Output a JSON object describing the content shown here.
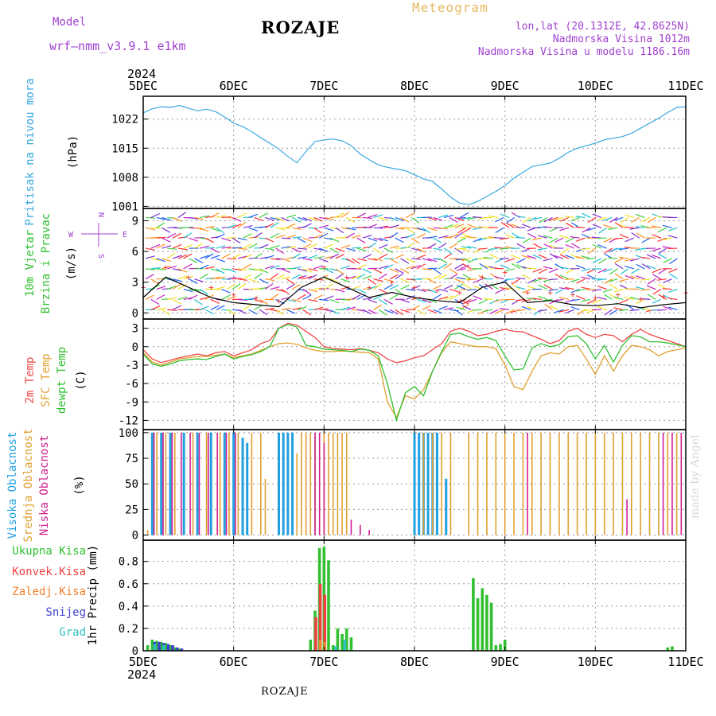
{
  "header": {
    "title": "ROZAJE",
    "model_label": "Model",
    "model_value": "wrf—nmm_v3.9.1  e1km",
    "meteogram_label": "Meteogram",
    "location_line1": "lon,lat (20.1312E, 42.8625N)",
    "location_line2": "Nadmorska Visina 1012m",
    "location_line3": "Nadmorska Visina u modelu 1186.16m"
  },
  "footer": {
    "station": "ROZAJE",
    "watermark": "made by Angel"
  },
  "colors": {
    "pressure": "#3aa8e0",
    "temp2m": "#f04848",
    "sfc_temp": "#e0a030",
    "dewpoint": "#30c030",
    "high_cloud": "#20a0e0",
    "mid_cloud": "#e0a030",
    "low_cloud": "#d02090",
    "total_precip": "#30c030",
    "conv_precip": "#f04040",
    "freezing_rain": "#f08030",
    "snow": "#4040d0",
    "graupel": "#30c0c0"
  },
  "chart_data": [
    {
      "type": "line",
      "panel": "pressure",
      "ylabel": [
        "Pritisak na nivou mora",
        "(hPa)"
      ],
      "ylim": [
        1000.5,
        1027.5
      ],
      "yticks": [
        "1001",
        "1008",
        "1015",
        "1022"
      ],
      "x_year_top": "2024",
      "x_year_bottom": "2024",
      "x_ticks": [
        "5DEC",
        "6DEC",
        "7DEC",
        "8DEC",
        "9DEC",
        "10DEC",
        "11DEC"
      ],
      "grid": true,
      "x": [
        0,
        0.1,
        0.2,
        0.3,
        0.4,
        0.5,
        0.6,
        0.7,
        0.8,
        0.85,
        0.9,
        0.95,
        1.0,
        1.1,
        1.2,
        1.3,
        1.4,
        1.5,
        1.6,
        1.7,
        1.8,
        1.9,
        2.0,
        2.1,
        2.2,
        2.3,
        2.4,
        2.5,
        2.6,
        2.7,
        2.8,
        2.9,
        3.0,
        3.1,
        3.2,
        3.3,
        3.4,
        3.5,
        3.6,
        3.7,
        3.8,
        3.9,
        4.0,
        4.1,
        4.2,
        4.3,
        4.4,
        4.5,
        4.6,
        4.7,
        4.8,
        4.9,
        5.0,
        5.1,
        5.2,
        5.3,
        5.4,
        5.5,
        5.6,
        5.7,
        5.8,
        5.9,
        6.0
      ],
      "series": [
        {
          "values": [
            1023.5,
            1024.5,
            1025.0,
            1024.8,
            1025.3,
            1024.6,
            1024.0,
            1024.4,
            1023.8,
            1023.2,
            1022.5,
            1021.8,
            1021.0,
            1020.2,
            1019.0,
            1017.5,
            1016.2,
            1014.8,
            1013.0,
            1011.5,
            1014.2,
            1016.6,
            1017.0,
            1017.2,
            1016.8,
            1015.6,
            1013.6,
            1012.2,
            1011.0,
            1010.4,
            1010.0,
            1009.6,
            1008.6,
            1007.6,
            1007.0,
            1005.2,
            1003.2,
            1001.8,
            1001.4,
            1002.2,
            1003.4,
            1004.6,
            1006.0,
            1007.8,
            1009.2,
            1010.6,
            1011.0,
            1011.4,
            1012.6,
            1014.0,
            1015.0,
            1015.6,
            1016.2,
            1017.0,
            1017.4,
            1017.8,
            1018.6,
            1019.8,
            1021.0,
            1022.2,
            1023.6,
            1024.8,
            1025.0
          ]
        }
      ]
    },
    {
      "type": "barb",
      "panel": "wind",
      "ylabel": [
        "10m Vjetar",
        "Brzina i Pravac",
        "(m/s)"
      ],
      "compass": [
        "N",
        "E",
        "S",
        "W"
      ],
      "ylim": [
        -0.6,
        10.2
      ],
      "yticks": [
        "0",
        "3",
        "6",
        "9"
      ],
      "grid": true,
      "x": [
        0,
        0.25,
        0.5,
        0.75,
        1.0,
        1.25,
        1.5,
        1.75,
        2.0,
        2.25,
        2.5,
        2.75,
        3.0,
        3.25,
        3.5,
        3.75,
        4.0,
        4.25,
        4.5,
        4.75,
        5.0,
        5.25,
        5.5,
        5.75,
        6.0
      ],
      "series": [
        {
          "values": [
            1.5,
            3.5,
            2.5,
            1.5,
            1.0,
            0.8,
            0.6,
            2.5,
            3.5,
            2.5,
            1.5,
            2.0,
            1.5,
            1.2,
            1.0,
            2.5,
            3.0,
            1.0,
            1.2,
            0.8,
            0.7,
            0.9,
            0.5,
            0.8,
            1.0
          ]
        },
        {
          "values": [
            2.5,
            4.5,
            3.5,
            2.5,
            1.8,
            1.5,
            1.2,
            3.5,
            4.5,
            3.5,
            2.5,
            3.0,
            2.5,
            2.2,
            2.0,
            3.5,
            4.0,
            2.0,
            2.0,
            1.8,
            1.5,
            1.8,
            1.4,
            1.6,
            2.0
          ]
        }
      ]
    },
    {
      "type": "line",
      "panel": "temperature",
      "ylabel": [
        "2m Temp",
        "SFC Temp",
        "dewpt Temp",
        "(C)"
      ],
      "ylim": [
        -13.5,
        4.5
      ],
      "yticks": [
        "3",
        "0",
        "-3",
        "-6",
        "-9",
        "-12"
      ],
      "grid": true,
      "x": [
        0,
        0.1,
        0.2,
        0.3,
        0.4,
        0.5,
        0.6,
        0.7,
        0.8,
        0.9,
        1.0,
        1.1,
        1.2,
        1.3,
        1.4,
        1.5,
        1.6,
        1.7,
        1.8,
        1.9,
        2.0,
        2.1,
        2.2,
        2.3,
        2.4,
        2.5,
        2.6,
        2.7,
        2.8,
        2.9,
        3.0,
        3.1,
        3.2,
        3.3,
        3.4,
        3.5,
        3.6,
        3.7,
        3.8,
        3.9,
        4.0,
        4.1,
        4.2,
        4.3,
        4.4,
        4.5,
        4.6,
        4.7,
        4.8,
        4.9,
        5.0,
        5.1,
        5.2,
        5.3,
        5.4,
        5.5,
        5.6,
        5.7,
        5.8,
        5.9,
        6.0
      ],
      "series": [
        {
          "name": "2m Temp",
          "values": [
            -0.5,
            -2.0,
            -2.6,
            -2.2,
            -1.8,
            -1.5,
            -1.2,
            -1.5,
            -1.0,
            -0.8,
            -1.5,
            -1.0,
            -0.5,
            0.5,
            1.0,
            3.0,
            3.8,
            3.5,
            2.5,
            1.5,
            0.0,
            -0.3,
            -0.4,
            -0.5,
            -0.3,
            -0.6,
            -1.0,
            -2.0,
            -2.6,
            -2.3,
            -1.8,
            -1.5,
            -0.5,
            0.5,
            2.5,
            3.0,
            2.5,
            1.8,
            2.0,
            2.5,
            2.8,
            2.5,
            2.4,
            1.8,
            1.2,
            0.5,
            1.0,
            2.5,
            3.0,
            2.0,
            1.5,
            2.0,
            1.8,
            0.8,
            2.0,
            2.8,
            2.0,
            1.5,
            1.0,
            0.5,
            0.0
          ]
        },
        {
          "name": "SFC Temp",
          "values": [
            -1.0,
            -2.5,
            -3.0,
            -2.5,
            -2.0,
            -1.8,
            -1.6,
            -1.6,
            -1.4,
            -1.2,
            -1.8,
            -1.5,
            -1.2,
            -0.6,
            0.0,
            0.5,
            0.6,
            0.4,
            -0.2,
            -0.6,
            -0.8,
            -0.8,
            -0.7,
            -0.8,
            -0.9,
            -1.0,
            -2.0,
            -9.0,
            -11.5,
            -8.0,
            -8.5,
            -7.0,
            -4.0,
            -1.0,
            0.8,
            0.5,
            0.2,
            0.0,
            0.0,
            -0.3,
            -3.0,
            -6.5,
            -7.0,
            -4.0,
            -1.5,
            -1.0,
            -1.2,
            0.0,
            0.2,
            -2.0,
            -4.5,
            -1.5,
            -4.0,
            -1.5,
            0.2,
            0.0,
            -0.5,
            -1.5,
            -0.8,
            -0.5,
            -0.2
          ]
        },
        {
          "name": "dewpt Temp",
          "values": [
            -1.2,
            -2.8,
            -3.2,
            -2.8,
            -2.3,
            -2.1,
            -2.0,
            -2.1,
            -1.6,
            -1.2,
            -2.0,
            -1.6,
            -1.3,
            -0.8,
            0.0,
            3.0,
            3.6,
            3.2,
            0.2,
            0.0,
            -0.4,
            -0.5,
            -0.6,
            -0.8,
            -0.4,
            -0.6,
            -1.5,
            -6.0,
            -12.0,
            -7.5,
            -6.5,
            -8.0,
            -4.0,
            -0.8,
            2.0,
            2.2,
            1.6,
            1.2,
            1.5,
            1.0,
            -1.5,
            -3.8,
            -3.6,
            -0.2,
            0.5,
            0.0,
            0.3,
            1.6,
            1.8,
            0.5,
            -2.0,
            0.2,
            -2.5,
            0.2,
            1.8,
            1.6,
            0.8,
            0.8,
            0.6,
            0.3,
            0.0
          ]
        }
      ]
    },
    {
      "type": "bar",
      "panel": "clouds",
      "ylabel": [
        "Visoka Oblacnost",
        "Srednja Oblacnost",
        "Niska Oblacnost",
        "(%)"
      ],
      "ylim": [
        -5,
        103
      ],
      "yticks": [
        "0",
        "25",
        "50",
        "75",
        "100"
      ],
      "grid": true,
      "series": [
        {
          "name": "Visoka Oblacnost",
          "x": [
            0.1,
            0.2,
            0.3,
            0.45,
            0.6,
            0.75,
            0.9,
            1.0,
            1.1,
            1.5,
            1.55,
            1.6,
            1.65,
            3.0,
            3.05,
            3.1,
            3.15,
            3.2,
            3.25,
            3.35,
            1.1,
            1.15
          ],
          "values": [
            100,
            100,
            100,
            100,
            100,
            100,
            100,
            100,
            95,
            100,
            100,
            100,
            100,
            100,
            100,
            100,
            100,
            100,
            100,
            55,
            60,
            90
          ]
        },
        {
          "name": "Srednja Oblacnost",
          "x": [
            0.05,
            0.15,
            0.25,
            0.35,
            0.55,
            0.7,
            0.85,
            0.95,
            1.05,
            1.2,
            1.3,
            1.35,
            1.7,
            1.75,
            1.8,
            1.85,
            1.9,
            2.0,
            2.05,
            2.1,
            2.15,
            2.2,
            2.25,
            3.1,
            3.2,
            3.3,
            3.4,
            3.6,
            3.7,
            3.8,
            3.9,
            4.0,
            4.1,
            4.2,
            4.3,
            4.4,
            4.5,
            4.6,
            4.7,
            4.8,
            4.9,
            5.0,
            5.1,
            5.2,
            5.3,
            5.4,
            5.5,
            5.6,
            5.7,
            5.8,
            5.9
          ],
          "values": [
            5,
            100,
            100,
            100,
            100,
            100,
            100,
            100,
            100,
            100,
            100,
            55,
            80,
            100,
            100,
            100,
            100,
            100,
            100,
            100,
            100,
            100,
            100,
            100,
            100,
            100,
            100,
            100,
            100,
            100,
            100,
            100,
            100,
            100,
            100,
            100,
            100,
            100,
            100,
            100,
            100,
            100,
            100,
            100,
            100,
            100,
            100,
            100,
            100,
            100,
            100
          ]
        },
        {
          "name": "Niska Oblacnost",
          "x": [
            0.12,
            0.22,
            0.32,
            0.42,
            0.52,
            0.62,
            0.72,
            0.82,
            0.92,
            1.02,
            1.9,
            1.95,
            2.0,
            2.3,
            2.4,
            2.5,
            4.25,
            5.35,
            5.75,
            5.85,
            5.95
          ],
          "values": [
            100,
            100,
            100,
            100,
            100,
            100,
            100,
            100,
            100,
            100,
            100,
            100,
            90,
            15,
            10,
            5,
            100,
            35,
            100,
            100,
            100
          ]
        }
      ]
    },
    {
      "type": "bar",
      "panel": "precip",
      "ylabel": [
        "1hr Precip (mm)"
      ],
      "legend": [
        "Ukupna Kisa",
        "Konvek.Kisa",
        "Zaledj.Kisa",
        "Snijeg",
        "Grad"
      ],
      "ylim": [
        0,
        0.99
      ],
      "yticks": [
        "0",
        "0.2",
        "0.4",
        "0.6",
        "0.8"
      ],
      "grid": true,
      "series": [
        {
          "name": "Ukupna Kisa",
          "x": [
            0.05,
            0.1,
            0.15,
            0.2,
            0.25,
            0.3,
            0.35,
            0.4,
            1.85,
            1.9,
            1.95,
            2.0,
            2.05,
            2.1,
            2.15,
            2.2,
            2.25,
            2.3,
            3.65,
            3.7,
            3.75,
            3.8,
            3.85,
            3.9,
            3.95,
            4.0,
            5.8,
            5.85
          ],
          "values": [
            0.05,
            0.1,
            0.09,
            0.08,
            0.07,
            0.05,
            0.03,
            0.02,
            0.1,
            0.36,
            0.92,
            0.93,
            0.81,
            0.05,
            0.2,
            0.15,
            0.2,
            0.12,
            0.65,
            0.47,
            0.56,
            0.5,
            0.43,
            0.05,
            0.06,
            0.1,
            0.03,
            0.04
          ]
        },
        {
          "name": "Konvek.Kisa",
          "x": [
            1.9,
            1.95,
            2.0
          ],
          "values": [
            0.3,
            0.6,
            0.5
          ]
        },
        {
          "name": "Zaledj.Kisa",
          "x": [
            1.95,
            2.0
          ],
          "values": [
            0.1,
            0.08
          ]
        },
        {
          "name": "Snijeg",
          "x": [
            0.1,
            0.15,
            0.2,
            0.25,
            0.3,
            0.35,
            0.4
          ],
          "values": [
            0.08,
            0.08,
            0.07,
            0.06,
            0.05,
            0.03,
            0.02
          ]
        },
        {
          "name": "Grad",
          "x": [
            0.12,
            0.22,
            2.12,
            2.22
          ],
          "values": [
            0.06,
            0.05,
            0.04,
            0.1
          ]
        }
      ]
    }
  ]
}
